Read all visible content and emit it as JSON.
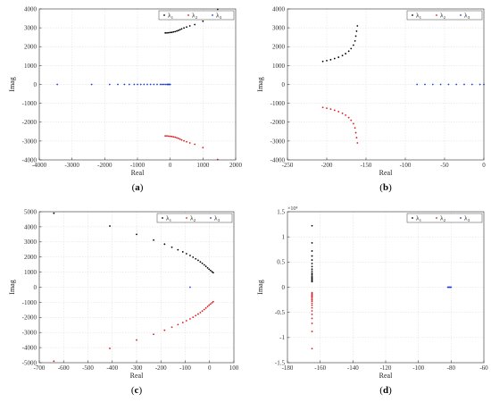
{
  "figure": {
    "panels": [
      {
        "label_open": "(",
        "label_letter": "a",
        "label_close": ")"
      },
      {
        "label_open": "(",
        "label_letter": "b",
        "label_close": ")"
      },
      {
        "label_open": "(",
        "label_letter": "c",
        "label_close": ")"
      },
      {
        "label_open": "(",
        "label_letter": "d",
        "label_close": ")"
      }
    ]
  },
  "colors": {
    "series1": "#000000",
    "series2": "#e0191b",
    "series3": "#1f3bd6",
    "grid": "#dcdcdc",
    "axis": "#333333"
  },
  "chart_data": [
    {
      "type": "scatter",
      "xlabel": "Real",
      "ylabel": "Imag",
      "xlim": [
        -4000,
        2000
      ],
      "ylim": [
        -4000,
        4000
      ],
      "xticks": [
        -4000,
        -3000,
        -2000,
        -1000,
        0,
        1000,
        2000
      ],
      "yticks": [
        -4000,
        -3000,
        -2000,
        -1000,
        0,
        1000,
        2000,
        3000,
        4000
      ],
      "exponent": "",
      "grid": true,
      "legend": "top-right",
      "series": [
        {
          "name": "λ₁",
          "points": [
            [
              -150,
              2730
            ],
            [
              -100,
              2730
            ],
            [
              -50,
              2740
            ],
            [
              0,
              2750
            ],
            [
              50,
              2760
            ],
            [
              100,
              2780
            ],
            [
              150,
              2800
            ],
            [
              200,
              2830
            ],
            [
              250,
              2860
            ],
            [
              300,
              2900
            ],
            [
              350,
              2940
            ],
            [
              420,
              2990
            ],
            [
              500,
              3040
            ],
            [
              600,
              3100
            ],
            [
              750,
              3170
            ],
            [
              1000,
              3350
            ],
            [
              1450,
              3980
            ]
          ]
        },
        {
          "name": "λ₂",
          "points": [
            [
              -150,
              -2730
            ],
            [
              -100,
              -2730
            ],
            [
              -50,
              -2740
            ],
            [
              0,
              -2750
            ],
            [
              50,
              -2760
            ],
            [
              100,
              -2780
            ],
            [
              150,
              -2800
            ],
            [
              200,
              -2830
            ],
            [
              250,
              -2860
            ],
            [
              300,
              -2900
            ],
            [
              350,
              -2940
            ],
            [
              420,
              -2990
            ],
            [
              500,
              -3040
            ],
            [
              600,
              -3100
            ],
            [
              750,
              -3170
            ],
            [
              1000,
              -3350
            ],
            [
              1450,
              -3980
            ]
          ]
        },
        {
          "name": "λ₃",
          "points": [
            [
              -3450,
              0
            ],
            [
              -2400,
              0
            ],
            [
              -1850,
              0
            ],
            [
              -1600,
              0
            ],
            [
              -1400,
              0
            ],
            [
              -1250,
              0
            ],
            [
              -1100,
              0
            ],
            [
              -1000,
              0
            ],
            [
              -900,
              0
            ],
            [
              -800,
              0
            ],
            [
              -700,
              0
            ],
            [
              -600,
              0
            ],
            [
              -500,
              0
            ],
            [
              -400,
              0
            ],
            [
              -300,
              0
            ],
            [
              -250,
              0
            ],
            [
              -200,
              0
            ],
            [
              -150,
              0
            ],
            [
              -100,
              0
            ],
            [
              -80,
              0
            ],
            [
              -60,
              0
            ],
            [
              -40,
              0
            ],
            [
              -20,
              0
            ],
            [
              0,
              0
            ]
          ]
        }
      ]
    },
    {
      "type": "scatter",
      "xlabel": "Real",
      "ylabel": "Imag",
      "xlim": [
        -250,
        0
      ],
      "ylim": [
        -4000,
        4000
      ],
      "xticks": [
        -250,
        -200,
        -150,
        -100,
        -50,
        0
      ],
      "yticks": [
        -4000,
        -3000,
        -2000,
        -1000,
        0,
        1000,
        2000,
        3000,
        4000
      ],
      "exponent": "",
      "grid": true,
      "legend": "top-right",
      "series": [
        {
          "name": "λ₁",
          "points": [
            [
              -205,
              1220
            ],
            [
              -200,
              1260
            ],
            [
              -195,
              1310
            ],
            [
              -190,
              1370
            ],
            [
              -185,
              1440
            ],
            [
              -180,
              1530
            ],
            [
              -176,
              1630
            ],
            [
              -172,
              1760
            ],
            [
              -169,
              1900
            ],
            [
              -166,
              2080
            ],
            [
              -164,
              2300
            ],
            [
              -163,
              2560
            ],
            [
              -162,
              2820
            ],
            [
              -161,
              3100
            ]
          ]
        },
        {
          "name": "λ₂",
          "points": [
            [
              -205,
              -1220
            ],
            [
              -200,
              -1260
            ],
            [
              -195,
              -1310
            ],
            [
              -190,
              -1370
            ],
            [
              -185,
              -1440
            ],
            [
              -180,
              -1530
            ],
            [
              -176,
              -1630
            ],
            [
              -172,
              -1760
            ],
            [
              -169,
              -1900
            ],
            [
              -166,
              -2080
            ],
            [
              -164,
              -2300
            ],
            [
              -163,
              -2560
            ],
            [
              -162,
              -2820
            ],
            [
              -161,
              -3100
            ]
          ]
        },
        {
          "name": "λ₃",
          "points": [
            [
              -85,
              0
            ],
            [
              -75,
              0
            ],
            [
              -65,
              0
            ],
            [
              -55,
              0
            ],
            [
              -45,
              0
            ],
            [
              -35,
              0
            ],
            [
              -25,
              0
            ],
            [
              -15,
              0
            ],
            [
              -5,
              0
            ],
            [
              0,
              0
            ]
          ]
        }
      ]
    },
    {
      "type": "scatter",
      "xlabel": "Real",
      "ylabel": "Imag",
      "xlim": [
        -700,
        100
      ],
      "ylim": [
        -5000,
        5000
      ],
      "xticks": [
        -700,
        -600,
        -500,
        -400,
        -300,
        -200,
        -100,
        0,
        100
      ],
      "yticks": [
        -5000,
        -4000,
        -3000,
        -2000,
        -1000,
        0,
        1000,
        2000,
        3000,
        4000,
        5000
      ],
      "exponent": "",
      "grid": true,
      "legend": "top-right",
      "series": [
        {
          "name": "λ₁",
          "points": [
            [
              -640,
              4900
            ],
            [
              -410,
              4050
            ],
            [
              -300,
              3500
            ],
            [
              -230,
              3120
            ],
            [
              -185,
              2850
            ],
            [
              -155,
              2650
            ],
            [
              -130,
              2480
            ],
            [
              -110,
              2340
            ],
            [
              -95,
              2220
            ],
            [
              -80,
              2100
            ],
            [
              -68,
              1990
            ],
            [
              -57,
              1880
            ],
            [
              -47,
              1780
            ],
            [
              -38,
              1680
            ],
            [
              -30,
              1580
            ],
            [
              -22,
              1480
            ],
            [
              -15,
              1380
            ],
            [
              -8,
              1280
            ],
            [
              -2,
              1190
            ],
            [
              4,
              1110
            ],
            [
              10,
              1030
            ],
            [
              15,
              960
            ]
          ]
        },
        {
          "name": "λ₂",
          "points": [
            [
              -640,
              -4900
            ],
            [
              -410,
              -4050
            ],
            [
              -300,
              -3500
            ],
            [
              -230,
              -3120
            ],
            [
              -185,
              -2850
            ],
            [
              -155,
              -2650
            ],
            [
              -130,
              -2480
            ],
            [
              -110,
              -2340
            ],
            [
              -95,
              -2220
            ],
            [
              -80,
              -2100
            ],
            [
              -68,
              -1990
            ],
            [
              -57,
              -1880
            ],
            [
              -47,
              -1780
            ],
            [
              -38,
              -1680
            ],
            [
              -30,
              -1580
            ],
            [
              -22,
              -1480
            ],
            [
              -15,
              -1380
            ],
            [
              -8,
              -1280
            ],
            [
              -2,
              -1190
            ],
            [
              4,
              -1110
            ],
            [
              10,
              -1030
            ],
            [
              15,
              -960
            ]
          ]
        },
        {
          "name": "λ₃",
          "points": [
            [
              -80,
              0
            ]
          ]
        }
      ]
    },
    {
      "type": "scatter",
      "xlabel": "Real",
      "ylabel": "Imag",
      "xlim": [
        -180,
        -60
      ],
      "ylim": [
        -1.5,
        1.5
      ],
      "xticks": [
        -180,
        -160,
        -140,
        -120,
        -100,
        -80,
        -60
      ],
      "yticks": [
        -1.5,
        -1,
        -0.5,
        0,
        0.5,
        1,
        1.5
      ],
      "exponent": "×10⁴",
      "grid": true,
      "legend": "top-right",
      "series": [
        {
          "name": "λ₁",
          "points": [
            [
              -165,
              1.22
            ],
            [
              -165,
              0.88
            ],
            [
              -165,
              0.72
            ],
            [
              -165,
              0.62
            ],
            [
              -165,
              0.54
            ],
            [
              -165,
              0.47
            ],
            [
              -165,
              0.41
            ],
            [
              -165,
              0.36
            ],
            [
              -165,
              0.32
            ],
            [
              -165,
              0.28
            ],
            [
              -165,
              0.25
            ],
            [
              -165,
              0.22
            ],
            [
              -165,
              0.19
            ],
            [
              -165,
              0.17
            ],
            [
              -165,
              0.15
            ],
            [
              -165,
              0.13
            ],
            [
              -165,
              0.11
            ]
          ]
        },
        {
          "name": "λ₂",
          "points": [
            [
              -165,
              -1.22
            ],
            [
              -165,
              -0.88
            ],
            [
              -165,
              -0.72
            ],
            [
              -165,
              -0.62
            ],
            [
              -165,
              -0.54
            ],
            [
              -165,
              -0.47
            ],
            [
              -165,
              -0.41
            ],
            [
              -165,
              -0.36
            ],
            [
              -165,
              -0.32
            ],
            [
              -165,
              -0.28
            ],
            [
              -165,
              -0.25
            ],
            [
              -165,
              -0.22
            ],
            [
              -165,
              -0.19
            ],
            [
              -165,
              -0.17
            ],
            [
              -165,
              -0.15
            ],
            [
              -165,
              -0.13
            ],
            [
              -165,
              -0.11
            ]
          ]
        },
        {
          "name": "λ₃",
          "points": [
            [
              -82,
              0
            ],
            [
              -81.5,
              0
            ],
            [
              -81,
              0
            ],
            [
              -80.5,
              0
            ],
            [
              -80,
              0
            ]
          ]
        }
      ]
    }
  ]
}
